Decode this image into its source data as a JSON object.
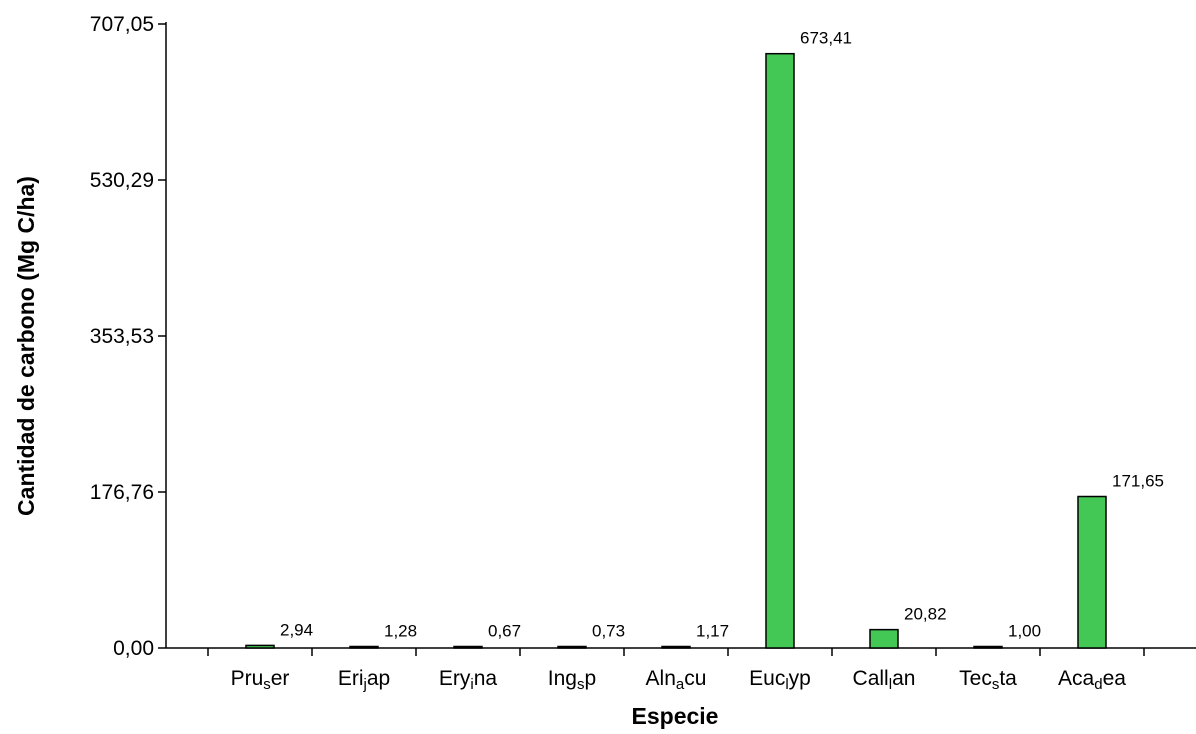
{
  "chart_data": {
    "type": "bar",
    "xlabel": "Especie",
    "ylabel": "Cantidad de carbono (Mg C/ha)",
    "categories": [
      {
        "main": "Pru",
        "sub": "s",
        "rest": "er"
      },
      {
        "main": "Eri",
        "sub": "j",
        "rest": "ap"
      },
      {
        "main": "Ery",
        "sub": "i",
        "rest": "na"
      },
      {
        "main": "Ing",
        "sub": "s",
        "rest": "p"
      },
      {
        "main": "Aln",
        "sub": "a",
        "rest": "cu"
      },
      {
        "main": "Euc",
        "sub": "l",
        "rest": "yp"
      },
      {
        "main": "Call",
        "sub": "l",
        "rest": "an"
      },
      {
        "main": "Tec",
        "sub": "s",
        "rest": "ta"
      },
      {
        "main": "Aca",
        "sub": "d",
        "rest": "ea"
      }
    ],
    "values": [
      2.94,
      1.28,
      0.67,
      0.73,
      1.17,
      673.41,
      20.82,
      1.0,
      171.65
    ],
    "value_labels": [
      "2,94",
      "1,28",
      "0,67",
      "0,73",
      "1,17",
      "673,41",
      "20,82",
      "1,00",
      "171,65"
    ],
    "ylim": [
      0,
      707.05
    ],
    "yticks": [
      0,
      176.76,
      353.53,
      530.29,
      707.05
    ],
    "ytick_labels": [
      "0,00",
      "176,76",
      "353,53",
      "530,29",
      "707,05"
    ],
    "bar_color": "#44c855",
    "bar_edge_color": "#000000",
    "grid": false,
    "legend": "none"
  }
}
